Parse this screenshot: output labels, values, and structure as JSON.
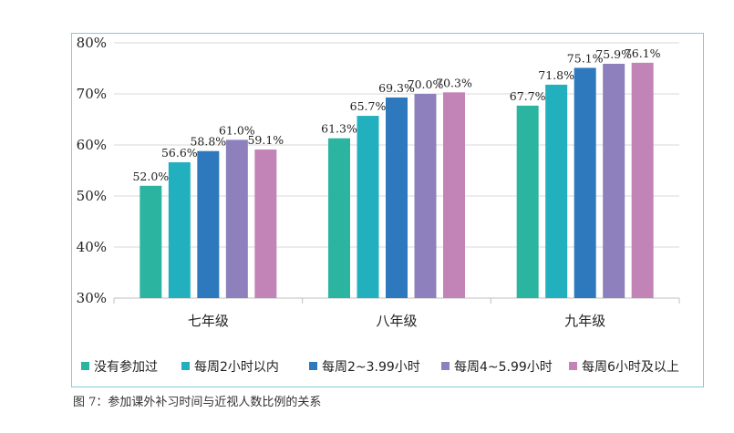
{
  "chart_data": {
    "type": "bar",
    "title": "",
    "xlabel": "",
    "ylabel": "",
    "ylim": [
      30,
      80
    ],
    "ytick_values": [
      30,
      40,
      50,
      60,
      70,
      80
    ],
    "ytick_labels": [
      "30%",
      "40%",
      "50%",
      "60%",
      "70%",
      "80%"
    ],
    "grid": true,
    "legend_position": "bottom",
    "categories": [
      "七年级",
      "八年级",
      "九年级"
    ],
    "series": [
      {
        "name": "没有参加过",
        "color": "#2bb5a0",
        "values": [
          52.0,
          61.3,
          67.7
        ],
        "labels": [
          "52.0%",
          "61.3%",
          "67.7%"
        ]
      },
      {
        "name": "每周2小时以内",
        "color": "#22b0bf",
        "values": [
          56.6,
          65.7,
          71.8
        ],
        "labels": [
          "56.6%",
          "65.7%",
          "71.8%"
        ]
      },
      {
        "name": "每周2~3.99小时",
        "color": "#2e78be",
        "values": [
          58.8,
          69.3,
          75.1
        ],
        "labels": [
          "58.8%",
          "69.3%",
          "75.1%"
        ]
      },
      {
        "name": "每周4~5.99小时",
        "color": "#8d80bd",
        "values": [
          61.0,
          70.0,
          75.9
        ],
        "labels": [
          "61.0%",
          "70.0%",
          "75.9%"
        ]
      },
      {
        "name": "每周6小时及以上",
        "color": "#c283b7",
        "values": [
          59.1,
          70.3,
          76.1
        ],
        "labels": [
          "59.1%",
          "70.3%",
          "76.1%"
        ]
      }
    ]
  },
  "caption": "图 7：参加课外补习时间与近视人数比例的关系"
}
